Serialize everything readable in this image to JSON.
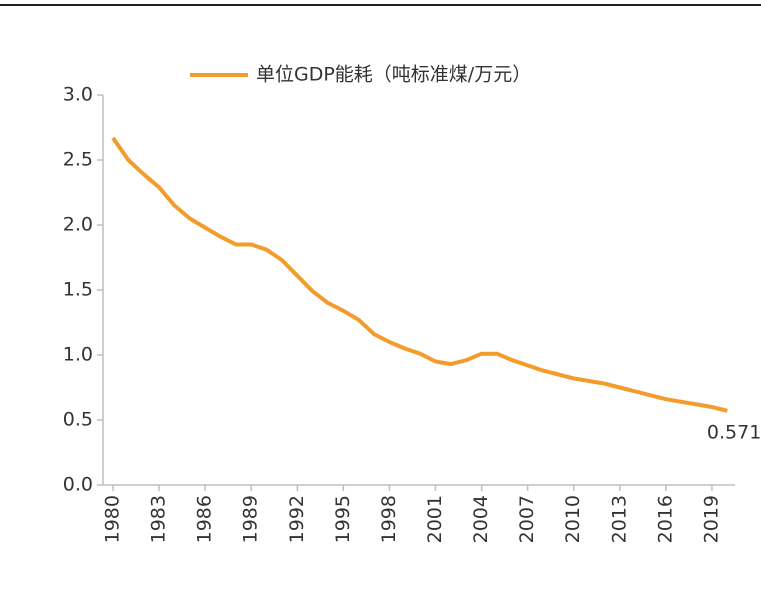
{
  "chart_data": {
    "type": "line",
    "x": [
      1980,
      1981,
      1982,
      1983,
      1984,
      1985,
      1986,
      1987,
      1988,
      1989,
      1990,
      1991,
      1992,
      1993,
      1994,
      1995,
      1996,
      1997,
      1998,
      1999,
      2000,
      2001,
      2002,
      2003,
      2004,
      2005,
      2006,
      2007,
      2008,
      2009,
      2010,
      2011,
      2012,
      2013,
      2014,
      2015,
      2016,
      2017,
      2018,
      2019,
      2020
    ],
    "series": [
      {
        "name": "单位GDP能耗（吨标准煤/万元）",
        "color": "#f39c2b",
        "values": [
          2.67,
          2.5,
          2.39,
          2.29,
          2.15,
          2.05,
          1.98,
          1.91,
          1.85,
          1.85,
          1.81,
          1.73,
          1.61,
          1.49,
          1.4,
          1.34,
          1.27,
          1.16,
          1.1,
          1.05,
          1.01,
          0.95,
          0.93,
          0.96,
          1.01,
          1.01,
          0.96,
          0.92,
          0.88,
          0.85,
          0.82,
          0.8,
          0.78,
          0.75,
          0.72,
          0.69,
          0.66,
          0.64,
          0.62,
          0.6,
          0.571
        ]
      }
    ],
    "data_labels": "last",
    "xlim": [
      1979.35,
      2020.5
    ],
    "xticks": [
      1980,
      1983,
      1986,
      1989,
      1992,
      1995,
      1998,
      2001,
      2004,
      2007,
      2010,
      2013,
      2016,
      2019
    ],
    "ylim": [
      0,
      3
    ],
    "yticks": [
      {
        "value": 0,
        "label": "0.0"
      },
      0.5,
      {
        "value": 1,
        "label": "1.0"
      },
      1.5,
      {
        "value": 2,
        "label": "2.0"
      },
      2.5,
      {
        "value": 3,
        "label": "3.0"
      }
    ],
    "legend": "top",
    "grid": false
  }
}
